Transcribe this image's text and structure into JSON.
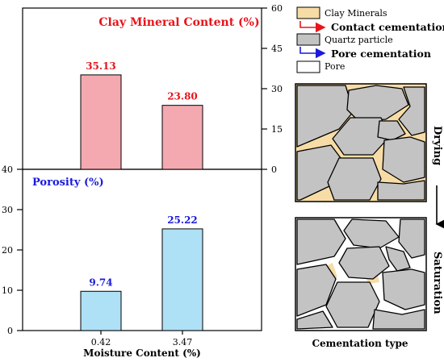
{
  "chart_data": [
    {
      "type": "bar",
      "title": "Clay Mineral Content (%)",
      "categories": [
        "0.42",
        "3.47"
      ],
      "values": [
        35.13,
        23.8
      ],
      "data_labels": [
        "35.13",
        "23.80"
      ],
      "yaxis_side": "right",
      "ylim": [
        0,
        60
      ],
      "yticks": [
        "0",
        "15",
        "30",
        "45",
        "60"
      ],
      "bar_color": "#f4a9b0",
      "label_color": "#e8141a",
      "grid": false
    },
    {
      "type": "bar",
      "title": "Porosity (%)",
      "categories": [
        "0.42",
        "3.47"
      ],
      "values": [
        9.74,
        25.22
      ],
      "data_labels": [
        "9.74",
        "25.22"
      ],
      "yaxis_side": "left",
      "ylim": [
        0,
        40
      ],
      "yticks": [
        "0",
        "10",
        "20",
        "30",
        "40"
      ],
      "xlabel": "Moisture Content (%)",
      "bar_color": "#aee0f6",
      "label_color": "#1a1adc",
      "grid": false
    }
  ],
  "legend": {
    "items": [
      {
        "label": "Clay Minerals",
        "color": "#f7dca6",
        "icon": "clay-swatch"
      },
      {
        "label": "Contact cementation",
        "color": "#e8141a",
        "icon": "red-arrow"
      },
      {
        "label": "Quartz particle",
        "color": "#c3c3c3",
        "icon": "quartz-swatch"
      },
      {
        "label": "Pore cementation",
        "color": "#1a1adc",
        "icon": "blue-arrow"
      },
      {
        "label": "Pore",
        "color": "#ffffff",
        "icon": "pore-swatch"
      }
    ]
  },
  "diagram": {
    "drying_label": "Drying",
    "saturation_label": "Saturation",
    "caption": "Cementation type"
  }
}
